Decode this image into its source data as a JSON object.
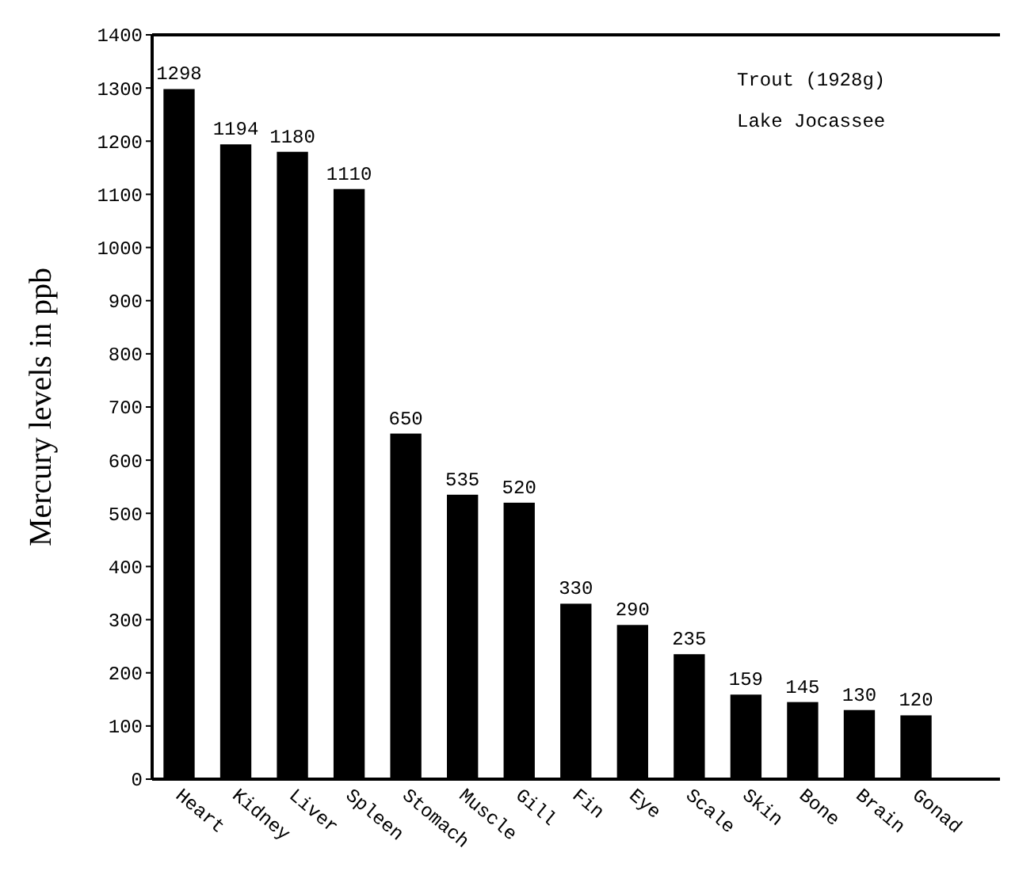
{
  "chart_data": {
    "type": "bar",
    "ylabel": "Mercury levels in ppb",
    "categories": [
      "Heart",
      "Kidney",
      "Liver",
      "Spleen",
      "Stomach",
      "Muscle",
      "Gill",
      "Fin",
      "Eye",
      "Scale",
      "Skin",
      "Bone",
      "Brain",
      "Gonad"
    ],
    "values": [
      1298,
      1194,
      1180,
      1110,
      650,
      535,
      520,
      330,
      290,
      235,
      159,
      145,
      130,
      120
    ],
    "color": "#000000",
    "data_labels": true,
    "ylim": [
      0,
      1400
    ],
    "yticks": [
      0,
      100,
      200,
      300,
      400,
      500,
      600,
      700,
      800,
      900,
      1000,
      1100,
      1200,
      1300,
      1400
    ],
    "annotations": [
      "Trout (1928g)",
      "Lake Jocassee"
    ]
  }
}
